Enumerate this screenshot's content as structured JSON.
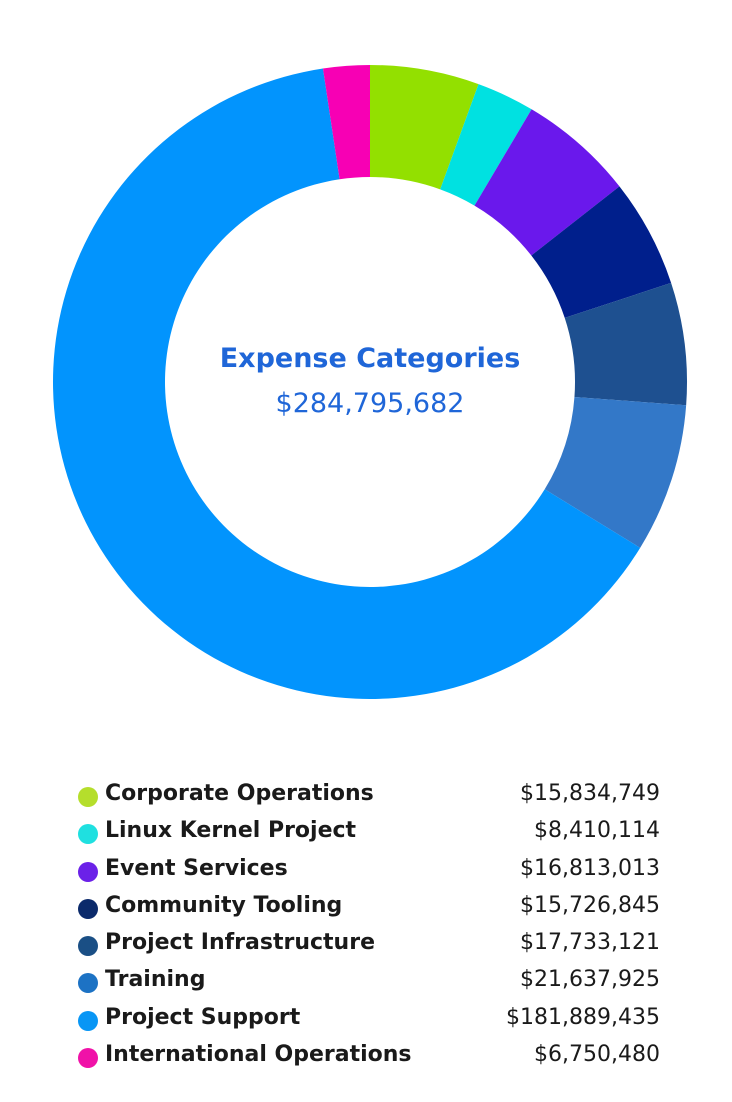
{
  "chart_data": {
    "type": "donut",
    "title": "Expense Categories",
    "total": "$284,795,682",
    "start_angle_deg": 0,
    "direction": "clockwise",
    "segments": [
      {
        "name": "Corporate Operations",
        "value": 15834749,
        "display": "$15,834,749",
        "color": "#93e000",
        "legend_color": "#b5de2c"
      },
      {
        "name": "Linux Kernel Project",
        "value": 8410114,
        "display": "$8,410,114",
        "color": "#00e1e1",
        "legend_color": "#1fe0e0"
      },
      {
        "name": "Event Services",
        "value": 16813013,
        "display": "$16,813,013",
        "color": "#6a18ec",
        "legend_color": "#6b21e8"
      },
      {
        "name": "Community Tooling",
        "value": 15726845,
        "display": "$15,726,845",
        "color": "#001f8c",
        "legend_color": "#0b2a6b"
      },
      {
        "name": "Project Infrastructure",
        "value": 17733121,
        "display": "$17,733,121",
        "color": "#1e5090",
        "legend_color": "#1a4f85"
      },
      {
        "name": "Training",
        "value": 21637925,
        "display": "$21,637,925",
        "color": "#3378c8",
        "legend_color": "#1c72c4"
      },
      {
        "name": "Project Support",
        "value": 181889435,
        "display": "$181,889,435",
        "color": "#0294fd",
        "legend_color": "#0896f5"
      },
      {
        "name": "International Operations",
        "value": 6750480,
        "display": "$6,750,480",
        "color": "#f700b4",
        "legend_color": "#f012a8"
      }
    ]
  },
  "colors": {
    "title": "#1f66d8",
    "total": "#1f66d8"
  }
}
